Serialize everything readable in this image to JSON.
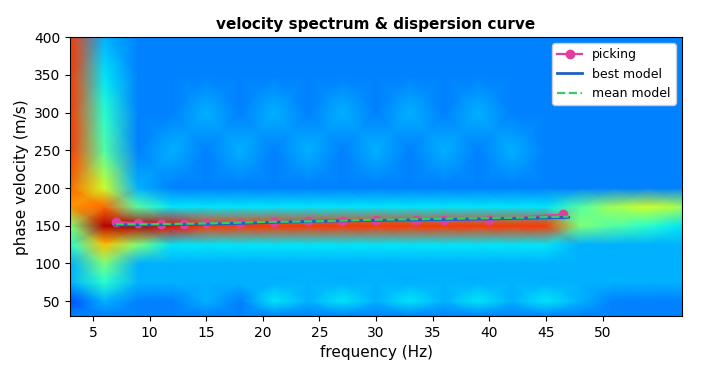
{
  "chart_data": {
    "type": "line",
    "title": "velocity spectrum & dispersion curve",
    "x_label": "frequency (Hz)",
    "y_label": "phase velocity (m/s)",
    "xlim": [
      3,
      57
    ],
    "ylim": [
      30,
      400
    ],
    "xticks": [
      5,
      10,
      15,
      20,
      25,
      30,
      35,
      40,
      45,
      50
    ],
    "yticks": [
      50,
      100,
      150,
      200,
      250,
      300,
      350,
      400
    ],
    "legend": "upper right",
    "heatmap": {
      "range": [
        0,
        1
      ],
      "x": [
        3,
        6,
        9,
        12,
        15,
        18,
        21,
        24,
        27,
        30,
        33,
        36,
        39,
        42,
        45,
        48,
        51,
        54,
        57
      ],
      "y": [
        30,
        50,
        75,
        100,
        125,
        150,
        175,
        200,
        250,
        300,
        350,
        400
      ],
      "cells": [
        [
          0.25,
          0.25,
          0.25,
          0.25,
          0.25,
          0.25,
          0.25,
          0.25,
          0.25,
          0.25,
          0.25,
          0.25,
          0.25,
          0.25,
          0.25,
          0.25,
          0.25,
          0.25,
          0.25
        ],
        [
          0.2,
          0.3,
          0.25,
          0.25,
          0.3,
          0.25,
          0.35,
          0.3,
          0.35,
          0.3,
          0.35,
          0.3,
          0.35,
          0.3,
          0.35,
          0.3,
          0.25,
          0.25,
          0.25
        ],
        [
          0.3,
          0.4,
          0.3,
          0.3,
          0.3,
          0.3,
          0.3,
          0.3,
          0.3,
          0.3,
          0.3,
          0.3,
          0.3,
          0.3,
          0.3,
          0.3,
          0.3,
          0.3,
          0.3
        ],
        [
          0.3,
          0.5,
          0.3,
          0.3,
          0.3,
          0.3,
          0.3,
          0.3,
          0.3,
          0.3,
          0.3,
          0.3,
          0.3,
          0.3,
          0.3,
          0.3,
          0.3,
          0.3,
          0.3
        ],
        [
          0.4,
          0.7,
          0.5,
          0.35,
          0.35,
          0.35,
          0.35,
          0.35,
          0.35,
          0.35,
          0.35,
          0.35,
          0.35,
          0.35,
          0.35,
          0.3,
          0.3,
          0.3,
          0.3
        ],
        [
          0.5,
          0.95,
          0.95,
          0.9,
          0.85,
          0.85,
          0.85,
          0.85,
          0.85,
          0.85,
          0.85,
          0.85,
          0.85,
          0.85,
          0.85,
          0.5,
          0.45,
          0.4,
          0.35
        ],
        [
          0.75,
          0.8,
          0.45,
          0.35,
          0.35,
          0.35,
          0.35,
          0.35,
          0.35,
          0.35,
          0.35,
          0.35,
          0.35,
          0.35,
          0.35,
          0.45,
          0.55,
          0.6,
          0.55
        ],
        [
          0.8,
          0.6,
          0.3,
          0.25,
          0.25,
          0.25,
          0.25,
          0.25,
          0.25,
          0.25,
          0.25,
          0.25,
          0.25,
          0.25,
          0.25,
          0.25,
          0.25,
          0.25,
          0.25
        ],
        [
          0.85,
          0.45,
          0.25,
          0.3,
          0.25,
          0.3,
          0.25,
          0.3,
          0.25,
          0.3,
          0.25,
          0.3,
          0.25,
          0.3,
          0.25,
          0.25,
          0.25,
          0.25,
          0.25
        ],
        [
          0.85,
          0.4,
          0.25,
          0.25,
          0.3,
          0.25,
          0.3,
          0.25,
          0.3,
          0.25,
          0.3,
          0.25,
          0.3,
          0.25,
          0.25,
          0.25,
          0.25,
          0.25,
          0.25
        ],
        [
          0.85,
          0.35,
          0.25,
          0.25,
          0.25,
          0.25,
          0.25,
          0.25,
          0.25,
          0.25,
          0.25,
          0.25,
          0.25,
          0.25,
          0.25,
          0.25,
          0.25,
          0.25,
          0.25
        ],
        [
          0.85,
          0.3,
          0.25,
          0.25,
          0.25,
          0.25,
          0.25,
          0.25,
          0.25,
          0.25,
          0.25,
          0.25,
          0.25,
          0.25,
          0.25,
          0.25,
          0.25,
          0.25,
          0.25
        ]
      ]
    },
    "series": [
      {
        "name": "picking",
        "color": "#e0409a",
        "marker": "circle",
        "line_style": "solid",
        "x": [
          7,
          9,
          11,
          13,
          15,
          18,
          21,
          24,
          27,
          30,
          33.5,
          36,
          40,
          46.5
        ],
        "values": [
          155,
          153,
          152,
          152,
          153,
          154,
          155,
          156,
          156,
          157,
          158,
          158,
          158,
          165
        ]
      },
      {
        "name": "best model",
        "color": "#1f5fbf",
        "line_style": "solid",
        "x": [
          7,
          10,
          15,
          20,
          25,
          30,
          35,
          40,
          47
        ],
        "values": [
          151,
          151,
          152,
          154,
          156,
          157,
          158,
          159,
          161
        ]
      },
      {
        "name": "mean model",
        "color": "#33cc66",
        "line_style": "dashed",
        "x": [
          7,
          10,
          15,
          20,
          25,
          30,
          35,
          40,
          47
        ],
        "values": [
          152,
          152,
          153,
          155,
          156,
          158,
          159,
          160,
          162
        ]
      }
    ]
  }
}
